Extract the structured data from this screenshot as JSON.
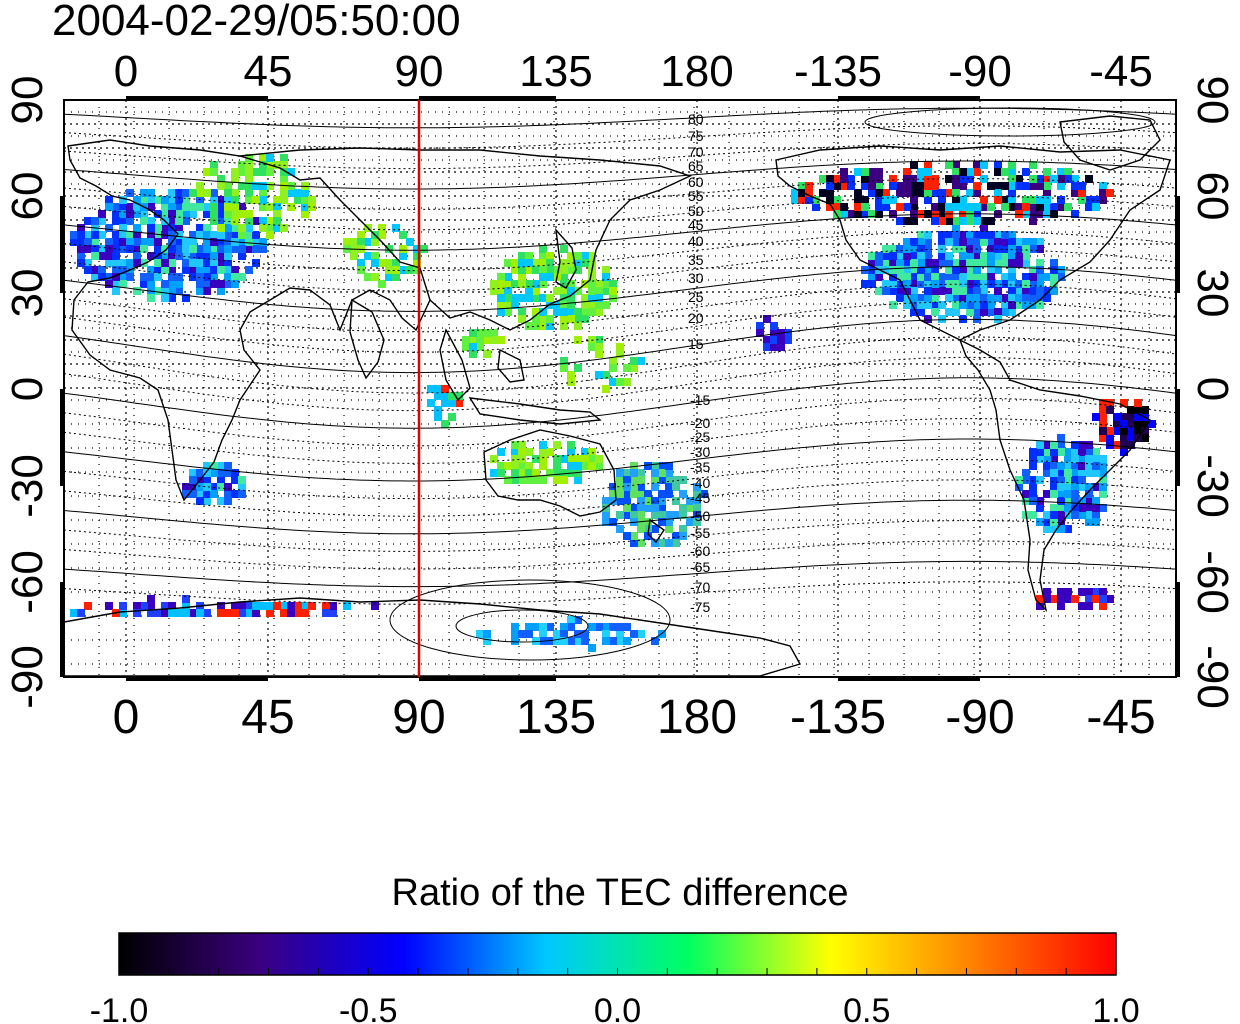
{
  "timestamp": "2004-02-29/05:50:00",
  "map": {
    "lon_ticks": [
      "0",
      "45",
      "90",
      "135",
      "180",
      "-135",
      "-90",
      "-45"
    ],
    "lat_ticks": [
      "90",
      "60",
      "30",
      "0",
      "-30",
      "-60",
      "-90"
    ],
    "marker_longitude_label": "90",
    "marker_color": "#e00000",
    "magnetic_contour_labels_north": [
      "80",
      "75",
      "70",
      "65",
      "60",
      "55",
      "50",
      "45",
      "40",
      "35",
      "30",
      "25",
      "20",
      "15"
    ],
    "magnetic_contour_labels_south": [
      "-15",
      "-20",
      "-25",
      "-30",
      "-35",
      "-40",
      "-45",
      "-50",
      "-55",
      "-60",
      "-65",
      "-70",
      "-75"
    ]
  },
  "colorbar": {
    "title": "Ratio of the TEC difference",
    "tick_labels": [
      "-1.0",
      "-0.5",
      "0.0",
      "0.5",
      "1.0"
    ],
    "min": -1.0,
    "max": 1.0,
    "colors": [
      "#000000",
      "#3a0080",
      "#0000ff",
      "#00c8ff",
      "#00ff60",
      "#ffff00",
      "#ff8000",
      "#ff0000"
    ]
  }
}
